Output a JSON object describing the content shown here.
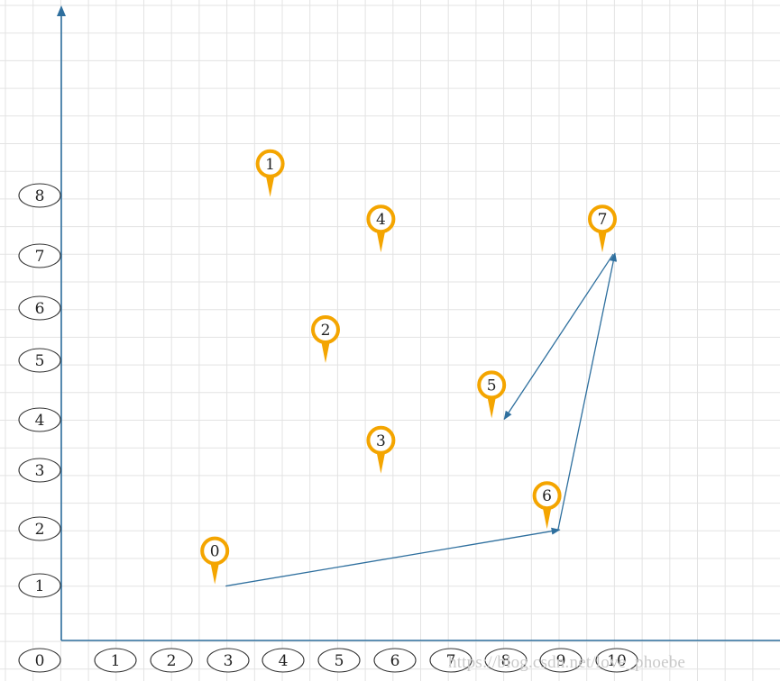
{
  "diagram": {
    "x_tick_labels": [
      "0",
      "1",
      "2",
      "3",
      "4",
      "5",
      "6",
      "7",
      "8",
      "9",
      "10"
    ],
    "y_tick_labels": [
      "1",
      "2",
      "3",
      "4",
      "5",
      "6",
      "7",
      "8"
    ],
    "points": [
      {
        "label": "0",
        "x": 3,
        "y": 1
      },
      {
        "label": "1",
        "x": 4,
        "y": 8
      },
      {
        "label": "2",
        "x": 5,
        "y": 5
      },
      {
        "label": "3",
        "x": 6,
        "y": 3
      },
      {
        "label": "4",
        "x": 6,
        "y": 7
      },
      {
        "label": "5",
        "x": 8,
        "y": 4
      },
      {
        "label": "6",
        "x": 9,
        "y": 2
      },
      {
        "label": "7",
        "x": 10,
        "y": 7
      }
    ],
    "arrows": [
      {
        "from": [
          3,
          1
        ],
        "to": [
          9,
          2
        ]
      },
      {
        "from": [
          9,
          2
        ],
        "to": [
          10,
          7
        ]
      },
      {
        "from": [
          10,
          7
        ],
        "to": [
          8,
          4
        ]
      }
    ],
    "colors": {
      "axis": "#2e6f9e",
      "arrow": "#2e6f9e",
      "marker": "#f4a500",
      "grid": "#e3e3e3",
      "tick_oval_border": "#333333"
    }
  },
  "watermark": "https://blog.csdn.net/love_phoebe"
}
